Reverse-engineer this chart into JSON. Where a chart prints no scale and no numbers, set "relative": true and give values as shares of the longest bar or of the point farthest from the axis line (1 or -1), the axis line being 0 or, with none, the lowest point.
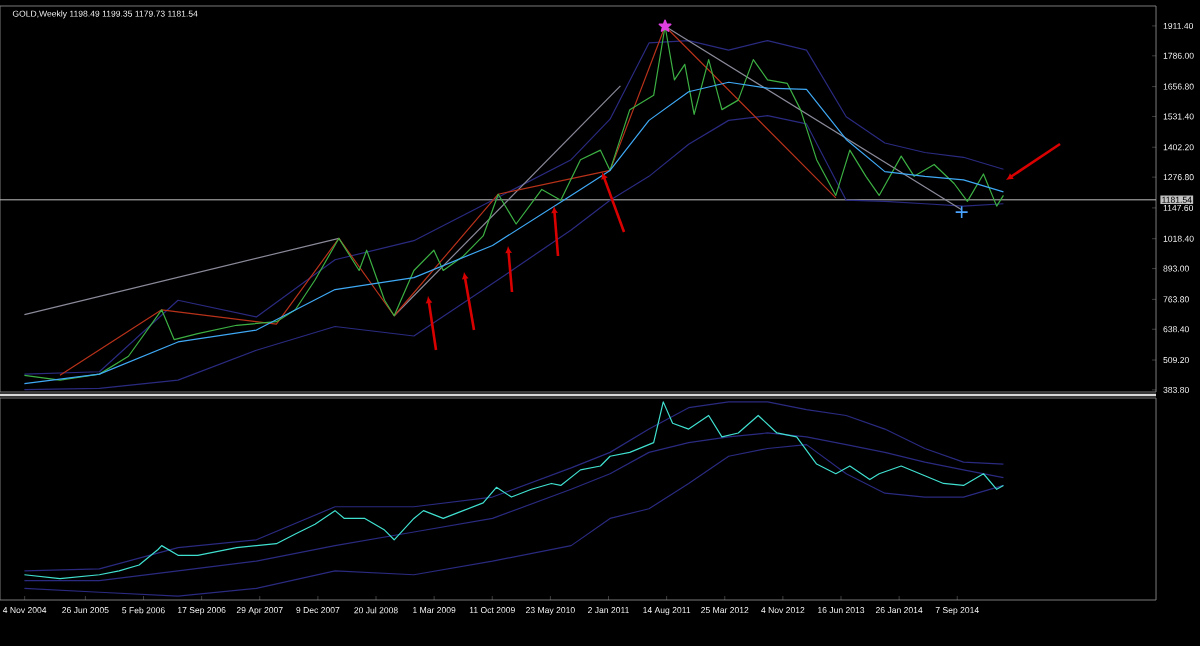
{
  "chart_data": [
    {
      "type": "line",
      "title": "GOLD,Weekly 1198.49 1199.35 1179.73 1181.54",
      "xlim": [
        "2004-08-01",
        "2016-10-12"
      ],
      "ylim": [
        375,
        1995
      ],
      "tick_labels": "y",
      "yticks": [
        {
          "value": 1911.4,
          "label": "1911.40"
        },
        {
          "value": 1786,
          "label": "1786.00"
        },
        {
          "value": 1656.8,
          "label": "1656.80"
        },
        {
          "value": 1531.4,
          "label": "1531.40"
        },
        {
          "value": 1402.2,
          "label": "1402.20"
        },
        {
          "value": 1276.8,
          "label": "1276.80"
        },
        {
          "value": 1147.6,
          "label": "1147.60"
        },
        {
          "value": 1018.4,
          "label": "1018.40"
        },
        {
          "value": 893,
          "label": "893.00"
        },
        {
          "value": 763.8,
          "label": "763.80"
        },
        {
          "value": 638.4,
          "label": "638.40"
        },
        {
          "value": 509.2,
          "label": "509.20"
        },
        {
          "value": 383.8,
          "label": "383.80"
        }
      ],
      "ref_lines": [
        {
          "axis": "y",
          "value": 1181.54,
          "label": "1181.54",
          "color": "#c0c0c0"
        }
      ],
      "series": [
        {
          "color": "#2a2a80",
          "x": [
            "2004-11-03",
            "2005-08-19",
            "2006-06-18",
            "2007-04-16",
            "2008-02-13",
            "2008-12-13",
            "2009-10-12",
            "2010-08-11",
            "2011-01-08",
            "2011-06-07",
            "2011-11-07",
            "2012-04-09",
            "2012-09-06",
            "2013-02-03",
            "2013-07-06",
            "2013-12-02",
            "2014-05-05",
            "2014-10-01",
            "2015-03-04"
          ],
          "values": [
            450,
            460,
            760,
            690,
            930,
            1010,
            1180,
            1350,
            1520,
            1840,
            1850,
            1810,
            1850,
            1810,
            1530,
            1420,
            1380,
            1360,
            1310
          ]
        },
        {
          "color": "#2a2a80",
          "x": [
            "2004-11-03",
            "2005-08-19",
            "2006-06-18",
            "2007-04-16",
            "2008-02-13",
            "2008-12-13",
            "2009-10-12",
            "2010-08-11",
            "2011-01-08",
            "2011-06-07",
            "2011-11-07",
            "2012-04-09",
            "2012-09-06",
            "2013-02-03",
            "2013-07-06",
            "2013-12-02",
            "2014-05-05",
            "2014-10-01",
            "2015-03-04"
          ],
          "values": [
            385,
            390,
            425,
            550,
            650,
            610,
            830,
            1055,
            1180,
            1280,
            1415,
            1515,
            1535,
            1500,
            1180,
            1175,
            1165,
            1155,
            1165
          ]
        },
        {
          "color": "#8a8a9a",
          "x": [
            "2004-11-03",
            "2008-02-28"
          ],
          "values": [
            700,
            1020
          ]
        },
        {
          "color": "#8a8a9a",
          "x": [
            "2008-09-28",
            "2011-02-17"
          ],
          "values": [
            695,
            1660
          ]
        },
        {
          "color": "#8a8a9a",
          "x": [
            "2011-08-08",
            "2014-09-24"
          ],
          "values": [
            1910,
            1140
          ]
        },
        {
          "color": "#b8321a",
          "x": [
            "2005-03-20",
            "2006-04-16",
            "2007-07-02",
            "2008-02-28",
            "2008-09-28",
            "2009-11-03",
            "2011-01-08",
            "2011-08-08",
            "2013-05-27"
          ],
          "values": [
            445,
            720,
            660,
            1020,
            695,
            1205,
            1305,
            1910,
            1190
          ]
        },
        {
          "color": "#3cb043",
          "x": [
            "2004-11-03",
            "2005-03-20",
            "2005-08-19",
            "2005-12-09",
            "2006-04-16",
            "2006-06-03",
            "2006-09-02",
            "2007-01-30",
            "2007-07-02",
            "2007-09-13",
            "2007-11-28",
            "2008-02-28",
            "2008-05-16",
            "2008-06-14",
            "2008-08-22",
            "2008-09-28",
            "2008-12-13",
            "2009-02-28",
            "2009-04-05",
            "2009-06-21",
            "2009-09-06",
            "2009-11-03",
            "2010-01-11",
            "2010-04-20",
            "2010-07-02",
            "2010-09-16",
            "2010-12-02",
            "2011-01-08",
            "2011-03-25",
            "2011-06-25",
            "2011-08-08",
            "2011-09-13",
            "2011-10-23",
            "2011-11-28",
            "2012-01-23",
            "2012-03-14",
            "2012-05-16",
            "2012-07-13",
            "2012-09-06",
            "2012-11-21",
            "2013-01-11",
            "2013-03-14",
            "2013-05-27",
            "2013-07-20",
            "2013-09-20",
            "2013-11-10",
            "2014-02-03",
            "2014-03-25",
            "2014-06-10",
            "2014-08-26",
            "2014-10-16",
            "2014-12-17",
            "2015-02-06",
            "2015-03-04"
          ],
          "values": [
            445,
            425,
            450,
            525,
            720,
            595,
            620,
            655,
            670,
            720,
            845,
            1020,
            885,
            970,
            760,
            695,
            885,
            970,
            885,
            945,
            1030,
            1205,
            1080,
            1225,
            1180,
            1350,
            1390,
            1305,
            1560,
            1620,
            1910,
            1685,
            1750,
            1540,
            1770,
            1560,
            1600,
            1770,
            1685,
            1670,
            1560,
            1350,
            1200,
            1390,
            1280,
            1200,
            1365,
            1280,
            1330,
            1250,
            1175,
            1290,
            1155,
            1200
          ]
        },
        {
          "color": "#3fa9f5",
          "x": [
            "2004-11-03",
            "2005-08-19",
            "2006-06-18",
            "2007-04-16",
            "2008-02-13",
            "2008-12-13",
            "2009-10-12",
            "2010-08-11",
            "2011-01-08",
            "2011-06-07",
            "2011-11-07",
            "2012-04-09",
            "2012-09-06",
            "2013-02-03",
            "2013-07-06",
            "2013-12-02",
            "2014-05-05",
            "2014-10-01",
            "2015-03-04"
          ],
          "values": [
            410,
            450,
            585,
            635,
            805,
            855,
            990,
            1200,
            1305,
            1515,
            1635,
            1675,
            1650,
            1645,
            1435,
            1300,
            1280,
            1265,
            1215
          ]
        },
        {
          "type": "scatter",
          "marker": "star",
          "color": "#e040e0",
          "x": [
            "2011-08-08"
          ],
          "values": [
            1910
          ]
        },
        {
          "type": "scatter",
          "marker": "cross",
          "color": "#4aa3ff",
          "x": [
            "2014-09-24"
          ],
          "values": [
            1130
          ]
        }
      ]
    },
    {
      "type": "line",
      "relative": true,
      "xlim": [
        "2004-08-01",
        "2016-10-12"
      ],
      "tick_labels": "x",
      "xticks": [
        {
          "value": "2004-11-04",
          "label": "4 Nov 2004"
        },
        {
          "value": "2005-06-26",
          "label": "26 Jun 2005"
        },
        {
          "value": "2006-02-05",
          "label": "5 Feb 2006"
        },
        {
          "value": "2006-09-17",
          "label": "17 Sep 2006"
        },
        {
          "value": "2007-04-29",
          "label": "29 Apr 2007"
        },
        {
          "value": "2007-12-09",
          "label": "9 Dec 2007"
        },
        {
          "value": "2008-07-20",
          "label": "20 Jul 2008"
        },
        {
          "value": "2009-03-01",
          "label": "1 Mar 2009"
        },
        {
          "value": "2009-10-11",
          "label": "11 Oct 2009"
        },
        {
          "value": "2010-05-23",
          "label": "23 May 2010"
        },
        {
          "value": "2011-01-02",
          "label": "2 Jan 2011"
        },
        {
          "value": "2011-08-14",
          "label": "14 Aug 2011"
        },
        {
          "value": "2012-03-25",
          "label": "25 Mar 2012"
        },
        {
          "value": "2012-11-04",
          "label": "4 Nov 2012"
        },
        {
          "value": "2013-06-16",
          "label": "16 Jun 2013"
        },
        {
          "value": "2014-01-26",
          "label": "26 Jan 2014"
        },
        {
          "value": "2014-09-07",
          "label": "7 Sep 2014"
        }
      ],
      "series": [
        {
          "color": "#2a2a80",
          "x": [
            "2004-11-03",
            "2005-08-19",
            "2006-06-18",
            "2007-04-16",
            "2008-02-13",
            "2008-12-13",
            "2009-10-12",
            "2010-08-11",
            "2011-01-08",
            "2011-06-07",
            "2011-11-07",
            "2012-04-09",
            "2012-09-06",
            "2013-02-03",
            "2013-07-06",
            "2013-12-02",
            "2014-05-05",
            "2014-10-01",
            "2015-03-04"
          ],
          "values": [
            0.13,
            0.14,
            0.25,
            0.29,
            0.46,
            0.46,
            0.51,
            0.66,
            0.74,
            0.86,
            0.97,
            1,
            1,
            0.96,
            0.93,
            0.86,
            0.76,
            0.69,
            0.68
          ]
        },
        {
          "color": "#2a2a80",
          "x": [
            "2004-11-03",
            "2005-08-19",
            "2006-06-18",
            "2007-04-16",
            "2008-02-13",
            "2008-12-13",
            "2009-10-12",
            "2010-08-11",
            "2011-01-08",
            "2011-06-07",
            "2011-11-07",
            "2012-04-09",
            "2012-09-06",
            "2013-02-03",
            "2013-07-06",
            "2013-12-02",
            "2014-05-05",
            "2014-10-01",
            "2015-03-04"
          ],
          "values": [
            0.08,
            0.08,
            0.13,
            0.18,
            0.26,
            0.33,
            0.4,
            0.55,
            0.63,
            0.74,
            0.79,
            0.82,
            0.84,
            0.82,
            0.78,
            0.74,
            0.69,
            0.65,
            0.61
          ]
        },
        {
          "color": "#2a2a80",
          "x": [
            "2004-11-03",
            "2005-08-19",
            "2006-06-18",
            "2007-04-16",
            "2008-02-13",
            "2008-12-13",
            "2009-10-12",
            "2010-08-11",
            "2011-01-08",
            "2011-06-07",
            "2011-11-07",
            "2012-04-09",
            "2012-09-06",
            "2013-02-03",
            "2013-07-06",
            "2013-12-02",
            "2014-05-05",
            "2014-10-01",
            "2015-03-04"
          ],
          "values": [
            0.04,
            0.02,
            0,
            0.04,
            0.13,
            0.11,
            0.18,
            0.26,
            0.4,
            0.45,
            0.58,
            0.72,
            0.76,
            0.78,
            0.63,
            0.53,
            0.51,
            0.51,
            0.57
          ]
        },
        {
          "color": "#40e0d0",
          "x": [
            "2004-11-03",
            "2005-03-20",
            "2005-08-19",
            "2005-11-03",
            "2006-01-19",
            "2006-04-02",
            "2006-04-16",
            "2006-06-18",
            "2006-09-02",
            "2007-01-30",
            "2007-07-02",
            "2007-09-13",
            "2007-11-28",
            "2008-02-13",
            "2008-03-20",
            "2008-06-07",
            "2008-08-22",
            "2008-09-28",
            "2008-12-13",
            "2009-01-19",
            "2009-04-05",
            "2009-06-21",
            "2009-09-06",
            "2009-10-27",
            "2009-12-24",
            "2010-03-11",
            "2010-05-27",
            "2010-07-02",
            "2010-09-16",
            "2010-12-02",
            "2011-01-08",
            "2011-03-25",
            "2011-06-25",
            "2011-08-01",
            "2011-09-06",
            "2011-11-07",
            "2012-01-23",
            "2012-03-14",
            "2012-05-16",
            "2012-08-01",
            "2012-10-12",
            "2012-12-27",
            "2013-03-14",
            "2013-05-27",
            "2013-07-20",
            "2013-10-05",
            "2013-11-10",
            "2014-02-03",
            "2014-05-05",
            "2014-07-16",
            "2014-10-01",
            "2014-12-17",
            "2015-02-06",
            "2015-03-04"
          ],
          "values": [
            0.11,
            0.09,
            0.11,
            0.13,
            0.16,
            0.24,
            0.26,
            0.21,
            0.21,
            0.25,
            0.27,
            0.32,
            0.37,
            0.44,
            0.4,
            0.4,
            0.34,
            0.29,
            0.4,
            0.44,
            0.4,
            0.44,
            0.48,
            0.56,
            0.51,
            0.55,
            0.58,
            0.57,
            0.65,
            0.67,
            0.72,
            0.74,
            0.79,
            1,
            0.89,
            0.86,
            0.93,
            0.82,
            0.84,
            0.93,
            0.84,
            0.82,
            0.68,
            0.63,
            0.67,
            0.6,
            0.63,
            0.67,
            0.62,
            0.58,
            0.57,
            0.63,
            0.55,
            0.57
          ]
        }
      ]
    }
  ]
}
